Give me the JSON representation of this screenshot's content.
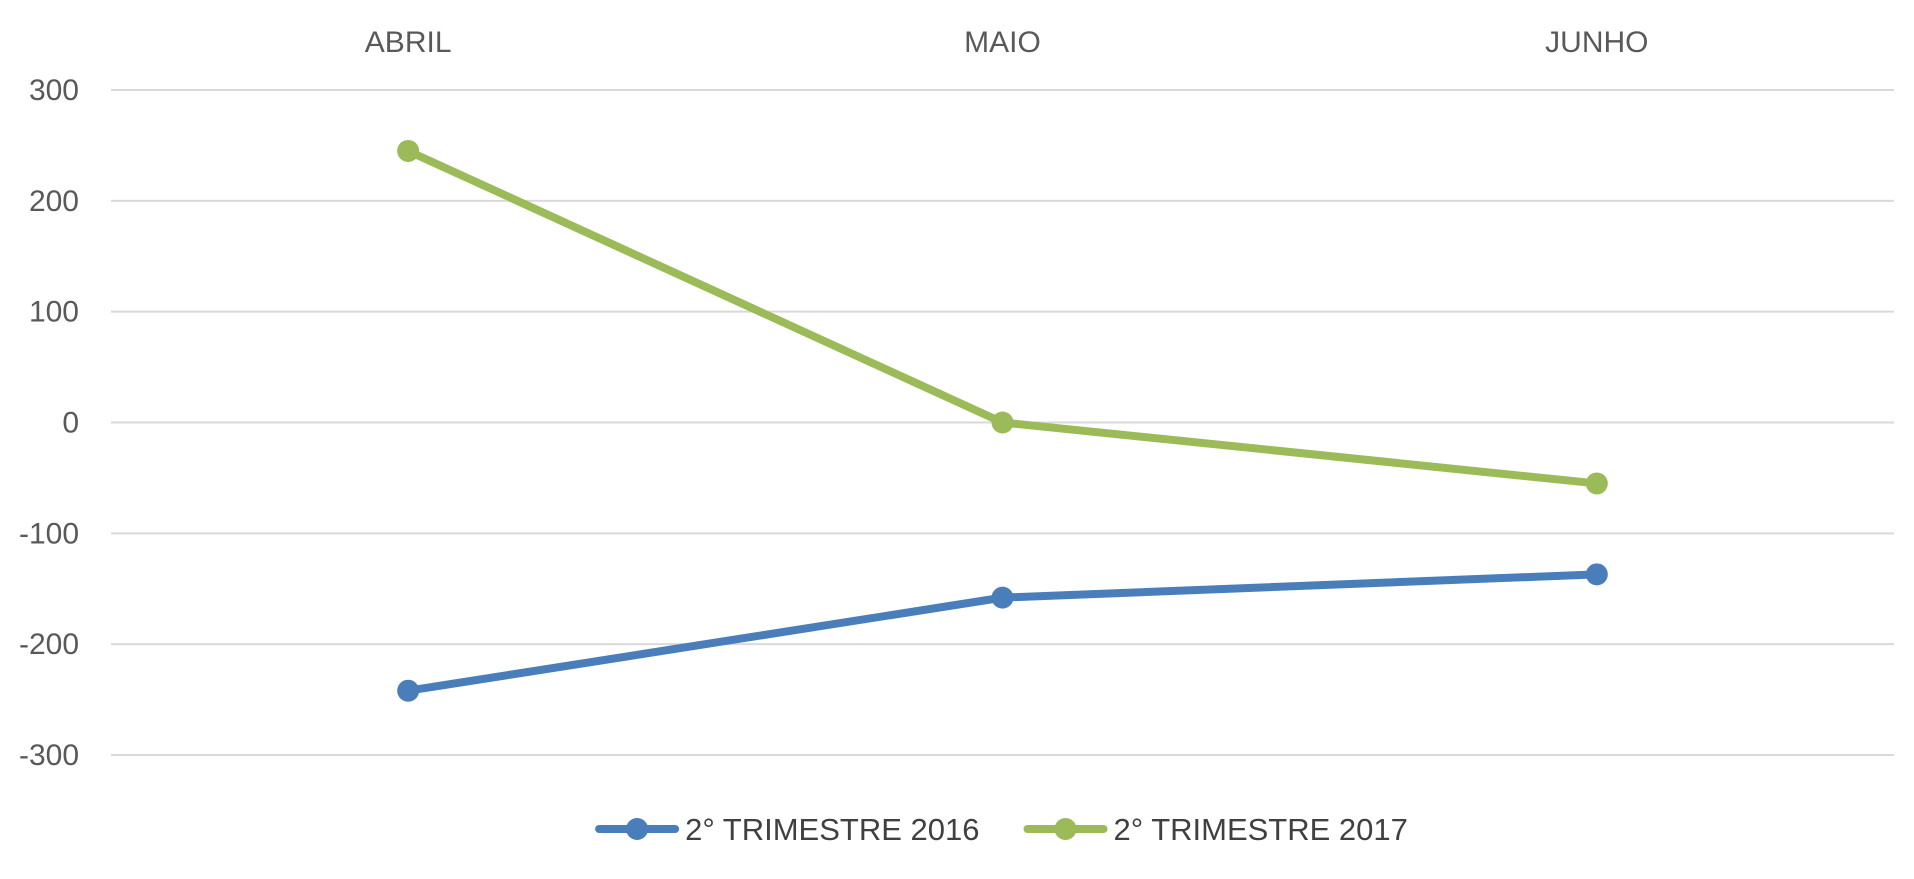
{
  "chart_data": {
    "type": "line",
    "categories": [
      "ABRIL",
      "MAIO",
      "JUNHO"
    ],
    "series": [
      {
        "name": "2° TRIMESTRE 2016",
        "values": [
          -242,
          -158,
          -137
        ],
        "color": "#4a7ebb"
      },
      {
        "name": "2° TRIMESTRE 2017",
        "values": [
          245,
          0,
          -55
        ],
        "color": "#9bbb59"
      }
    ],
    "title": "",
    "xlabel": "",
    "ylabel": "",
    "ylim": [
      -300,
      300
    ],
    "yticks": [
      "300",
      "200",
      "100",
      "0",
      "-100",
      "-200",
      "-300"
    ],
    "x_axis_position": "top",
    "grid": true,
    "gridline_color": "#d9d9d9",
    "legend_position": "bottom-center"
  }
}
